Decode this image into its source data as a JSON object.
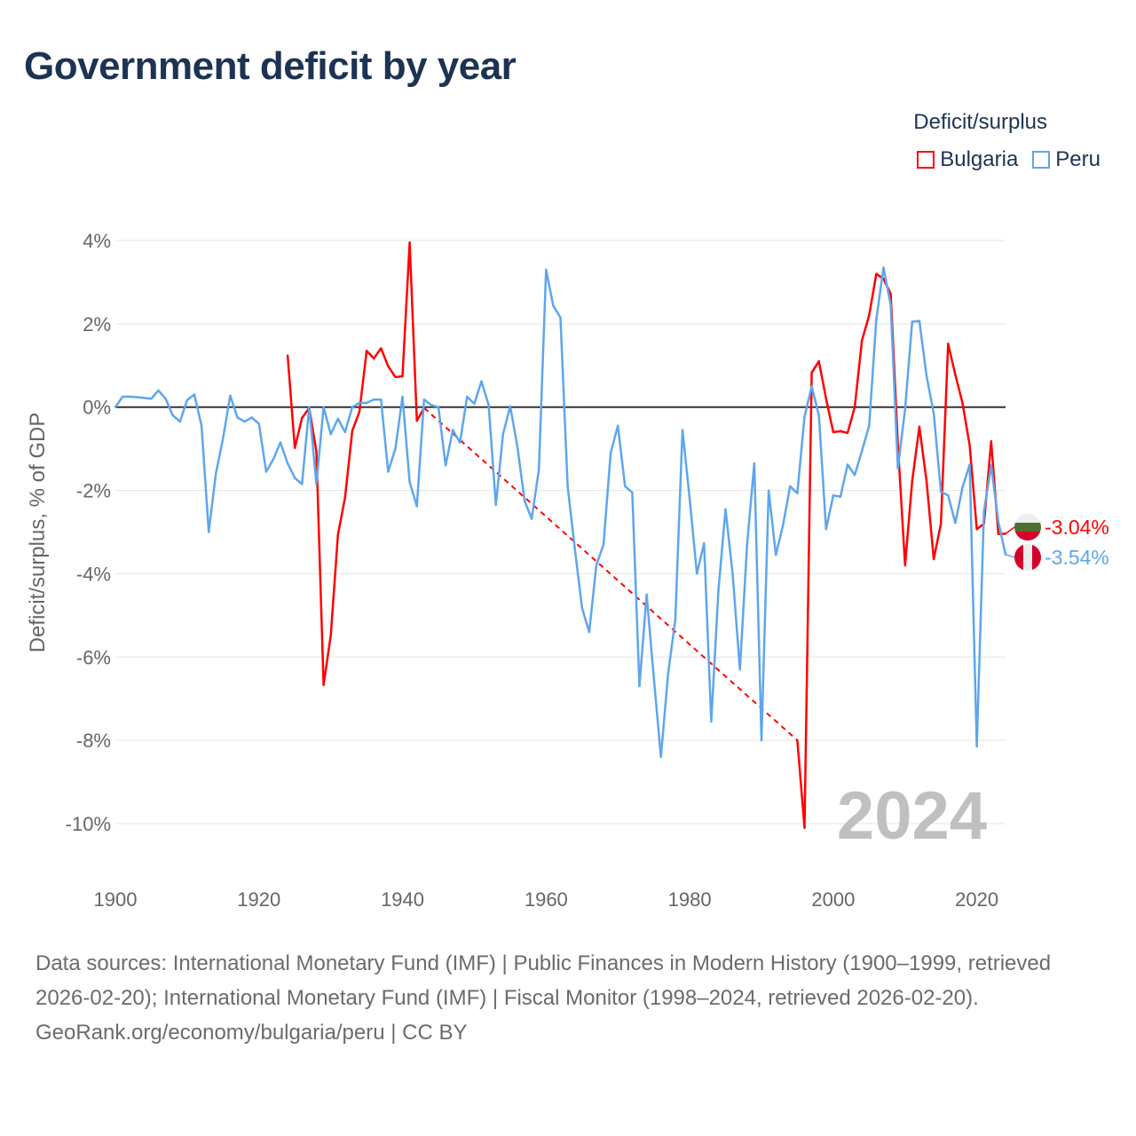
{
  "title": "Government deficit by year",
  "legend": {
    "title": "Deficit/surplus",
    "items": [
      {
        "name": "Bulgaria",
        "color": "#ff0000"
      },
      {
        "name": "Peru",
        "color": "#5ea6ec"
      }
    ]
  },
  "year_watermark": "2024",
  "end_labels": {
    "Bulgaria": "-3.04%",
    "Peru": "-3.54%"
  },
  "footer": {
    "sources": "Data sources: International Monetary Fund (IMF) | Public Finances in Modern History (1900–1999, retrieved 2026-02-20); International Monetary Fund (IMF) | Fiscal Monitor (1998–2024, retrieved 2026-02-20).",
    "credit": "GeoRank.org/economy/bulgaria/peru | CC BY"
  },
  "chart_data": {
    "type": "line",
    "title": "Government deficit by year",
    "xlabel": "",
    "ylabel": "Deficit/surplus, % of GDP",
    "xlim": [
      1900,
      2024
    ],
    "ylim": [
      -10,
      4
    ],
    "x_ticks": [
      1900,
      1920,
      1940,
      1960,
      1980,
      2000,
      2020
    ],
    "x_tick_labels": [
      "1900",
      "1920",
      "1940",
      "1960",
      "1980",
      "2000",
      "2020"
    ],
    "y_ticks": [
      4,
      2,
      0,
      -2,
      -4,
      -6,
      -8,
      -10
    ],
    "y_tick_labels": [
      "4%",
      "2%",
      "0%",
      "-2%",
      "-4%",
      "-6%",
      "-8%",
      "-10%"
    ],
    "grid": true,
    "legend_position": "top-right",
    "series": [
      {
        "name": "Bulgaria",
        "color": "#ff0000",
        "points": [
          [
            1924,
            1.24
          ],
          [
            1925,
            -0.98
          ],
          [
            1926,
            -0.26
          ],
          [
            1927,
            -0.02
          ],
          [
            1928,
            -1.07
          ],
          [
            1929,
            -6.67
          ],
          [
            1930,
            -5.48
          ],
          [
            1931,
            -3.06
          ],
          [
            1932,
            -2.17
          ],
          [
            1933,
            -0.57
          ],
          [
            1934,
            -0.11
          ],
          [
            1935,
            1.35
          ],
          [
            1936,
            1.17
          ],
          [
            1937,
            1.41
          ],
          [
            1938,
            0.98
          ],
          [
            1939,
            0.72
          ],
          [
            1940,
            0.74
          ],
          [
            1941,
            3.95
          ],
          [
            1942,
            -0.33
          ],
          [
            1943,
            -0.02
          ],
          [
            1995,
            -8.0
          ],
          [
            1996,
            -10.1
          ],
          [
            1997,
            0.83
          ],
          [
            1998,
            1.1
          ],
          [
            1999,
            0.2
          ],
          [
            2000,
            -0.6
          ],
          [
            2001,
            -0.58
          ],
          [
            2002,
            -0.62
          ],
          [
            2003,
            0.0
          ],
          [
            2004,
            1.6
          ],
          [
            2005,
            2.2
          ],
          [
            2006,
            3.2
          ],
          [
            2007,
            3.08
          ],
          [
            2008,
            2.72
          ],
          [
            2009,
            -0.9
          ],
          [
            2010,
            -3.8
          ],
          [
            2011,
            -1.78
          ],
          [
            2012,
            -0.47
          ],
          [
            2013,
            -1.78
          ],
          [
            2014,
            -3.65
          ],
          [
            2015,
            -2.8
          ],
          [
            2016,
            1.52
          ],
          [
            2017,
            0.78
          ],
          [
            2018,
            0.1
          ],
          [
            2019,
            -0.92
          ],
          [
            2020,
            -2.93
          ],
          [
            2021,
            -2.8
          ],
          [
            2022,
            -0.82
          ],
          [
            2023,
            -3.05
          ],
          [
            2024,
            -3.04
          ]
        ]
      },
      {
        "name": "Peru",
        "color": "#5ea6ec",
        "points": [
          [
            1900,
            0.0
          ],
          [
            1901,
            0.25
          ],
          [
            1902,
            0.25
          ],
          [
            1903,
            0.24
          ],
          [
            1904,
            0.22
          ],
          [
            1905,
            0.2
          ],
          [
            1906,
            0.4
          ],
          [
            1907,
            0.2
          ],
          [
            1908,
            -0.2
          ],
          [
            1909,
            -0.35
          ],
          [
            1910,
            0.17
          ],
          [
            1911,
            0.3
          ],
          [
            1912,
            -0.45
          ],
          [
            1913,
            -3.0
          ],
          [
            1914,
            -1.6
          ],
          [
            1915,
            -0.75
          ],
          [
            1916,
            0.28
          ],
          [
            1917,
            -0.25
          ],
          [
            1918,
            -0.35
          ],
          [
            1919,
            -0.25
          ],
          [
            1920,
            -0.4
          ],
          [
            1921,
            -1.55
          ],
          [
            1922,
            -1.25
          ],
          [
            1923,
            -0.85
          ],
          [
            1924,
            -1.35
          ],
          [
            1925,
            -1.7
          ],
          [
            1926,
            -1.85
          ],
          [
            1927,
            0.0
          ],
          [
            1928,
            -1.85
          ],
          [
            1929,
            0.0
          ],
          [
            1930,
            -0.65
          ],
          [
            1931,
            -0.28
          ],
          [
            1932,
            -0.6
          ],
          [
            1933,
            0.0
          ],
          [
            1934,
            0.1
          ],
          [
            1935,
            0.1
          ],
          [
            1936,
            0.18
          ],
          [
            1937,
            0.18
          ],
          [
            1938,
            -1.55
          ],
          [
            1939,
            -1.0
          ],
          [
            1940,
            0.25
          ],
          [
            1941,
            -1.8
          ],
          [
            1942,
            -2.38
          ],
          [
            1943,
            0.18
          ],
          [
            1944,
            0.05
          ],
          [
            1945,
            0.0
          ],
          [
            1946,
            -1.4
          ],
          [
            1947,
            -0.55
          ],
          [
            1948,
            -0.85
          ],
          [
            1949,
            0.25
          ],
          [
            1950,
            0.08
          ],
          [
            1951,
            0.62
          ],
          [
            1952,
            0.05
          ],
          [
            1953,
            -2.35
          ],
          [
            1954,
            -0.65
          ],
          [
            1955,
            0.02
          ],
          [
            1956,
            -0.95
          ],
          [
            1957,
            -2.25
          ],
          [
            1958,
            -2.68
          ],
          [
            1959,
            -1.5
          ],
          [
            1960,
            3.3
          ],
          [
            1961,
            2.43
          ],
          [
            1962,
            2.15
          ],
          [
            1963,
            -1.9
          ],
          [
            1964,
            -3.4
          ],
          [
            1965,
            -4.82
          ],
          [
            1966,
            -5.4
          ],
          [
            1967,
            -3.8
          ],
          [
            1968,
            -3.3
          ],
          [
            1969,
            -1.1
          ],
          [
            1970,
            -0.45
          ],
          [
            1971,
            -1.9
          ],
          [
            1972,
            -2.05
          ],
          [
            1973,
            -6.7
          ],
          [
            1974,
            -4.5
          ],
          [
            1975,
            -6.5
          ],
          [
            1976,
            -8.4
          ],
          [
            1977,
            -6.4
          ],
          [
            1978,
            -5.1
          ],
          [
            1979,
            -0.55
          ],
          [
            1980,
            -2.2
          ],
          [
            1981,
            -4.0
          ],
          [
            1982,
            -3.27
          ],
          [
            1983,
            -7.55
          ],
          [
            1984,
            -4.4
          ],
          [
            1985,
            -2.45
          ],
          [
            1986,
            -4.03
          ],
          [
            1987,
            -6.3
          ],
          [
            1988,
            -3.3
          ],
          [
            1989,
            -1.35
          ],
          [
            1990,
            -8.0
          ],
          [
            1991,
            -2.0
          ],
          [
            1992,
            -3.55
          ],
          [
            1993,
            -2.83
          ],
          [
            1994,
            -1.9
          ],
          [
            1995,
            -2.07
          ],
          [
            1996,
            -0.23
          ],
          [
            1997,
            0.5
          ],
          [
            1998,
            -0.2
          ],
          [
            1999,
            -2.93
          ],
          [
            2000,
            -2.12
          ],
          [
            2001,
            -2.15
          ],
          [
            2002,
            -1.38
          ],
          [
            2003,
            -1.63
          ],
          [
            2004,
            -1.05
          ],
          [
            2005,
            -0.45
          ],
          [
            2006,
            2.1
          ],
          [
            2007,
            3.35
          ],
          [
            2008,
            2.45
          ],
          [
            2009,
            -1.47
          ],
          [
            2010,
            -0.05
          ],
          [
            2011,
            2.05
          ],
          [
            2012,
            2.07
          ],
          [
            2013,
            0.75
          ],
          [
            2014,
            -0.15
          ],
          [
            2015,
            -2.03
          ],
          [
            2016,
            -2.12
          ],
          [
            2017,
            -2.78
          ],
          [
            2018,
            -1.93
          ],
          [
            2019,
            -1.38
          ],
          [
            2020,
            -8.15
          ],
          [
            2021,
            -2.5
          ],
          [
            2022,
            -1.4
          ],
          [
            2023,
            -2.75
          ],
          [
            2024,
            -3.54
          ]
        ]
      }
    ]
  }
}
